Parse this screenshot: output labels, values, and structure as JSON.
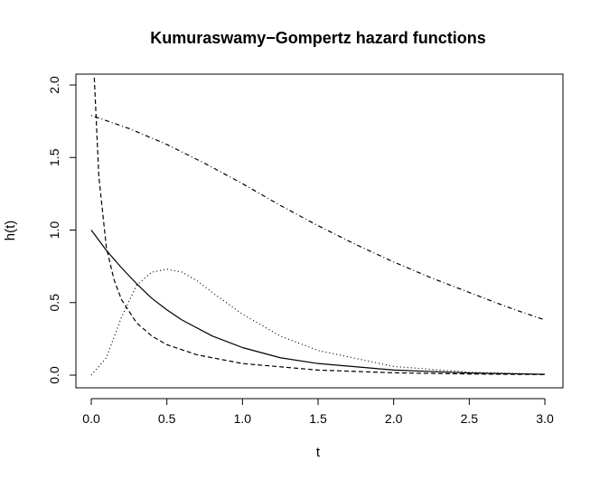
{
  "chart_data": {
    "type": "line",
    "title": "Kumuraswamy−Gompertz hazard functions",
    "xlabel": "t",
    "ylabel": "h(t)",
    "xlim": [
      0,
      3
    ],
    "ylim": [
      0,
      2
    ],
    "x_ticks": [
      "0.0",
      "0.5",
      "1.0",
      "1.5",
      "2.0",
      "2.5",
      "3.0"
    ],
    "y_ticks": [
      "0.0",
      "0.5",
      "1.0",
      "1.5",
      "2.0"
    ],
    "grid": false,
    "legend": "none",
    "line_color": "#000000",
    "series": [
      {
        "line_style": "solid",
        "x": [
          0,
          0.1,
          0.2,
          0.3,
          0.4,
          0.5,
          0.6,
          0.8,
          1.0,
          1.25,
          1.5,
          2.0,
          2.5,
          3.0
        ],
        "values": [
          1.0,
          0.86,
          0.74,
          0.63,
          0.53,
          0.45,
          0.38,
          0.27,
          0.19,
          0.12,
          0.08,
          0.035,
          0.015,
          0.006
        ]
      },
      {
        "line_style": "dashed",
        "x": [
          0.02,
          0.05,
          0.1,
          0.15,
          0.2,
          0.3,
          0.4,
          0.5,
          0.7,
          1.0,
          1.5,
          2.0,
          2.5,
          3.0
        ],
        "values": [
          2.05,
          1.37,
          0.88,
          0.66,
          0.52,
          0.36,
          0.27,
          0.21,
          0.14,
          0.08,
          0.035,
          0.016,
          0.008,
          0.004
        ]
      },
      {
        "line_style": "dotted",
        "x": [
          0,
          0.1,
          0.2,
          0.3,
          0.4,
          0.5,
          0.6,
          0.7,
          0.8,
          1.0,
          1.25,
          1.5,
          2.0,
          2.5,
          3.0
        ],
        "values": [
          0.0,
          0.12,
          0.4,
          0.62,
          0.71,
          0.73,
          0.71,
          0.65,
          0.57,
          0.42,
          0.27,
          0.17,
          0.06,
          0.02,
          0.006
        ]
      },
      {
        "line_style": "dotdash",
        "x": [
          0,
          0.25,
          0.5,
          0.75,
          1.0,
          1.25,
          1.5,
          1.75,
          2.0,
          2.25,
          2.5,
          2.75,
          3.0
        ],
        "values": [
          1.79,
          1.7,
          1.59,
          1.46,
          1.32,
          1.17,
          1.03,
          0.9,
          0.78,
          0.67,
          0.57,
          0.47,
          0.38
        ]
      }
    ]
  }
}
